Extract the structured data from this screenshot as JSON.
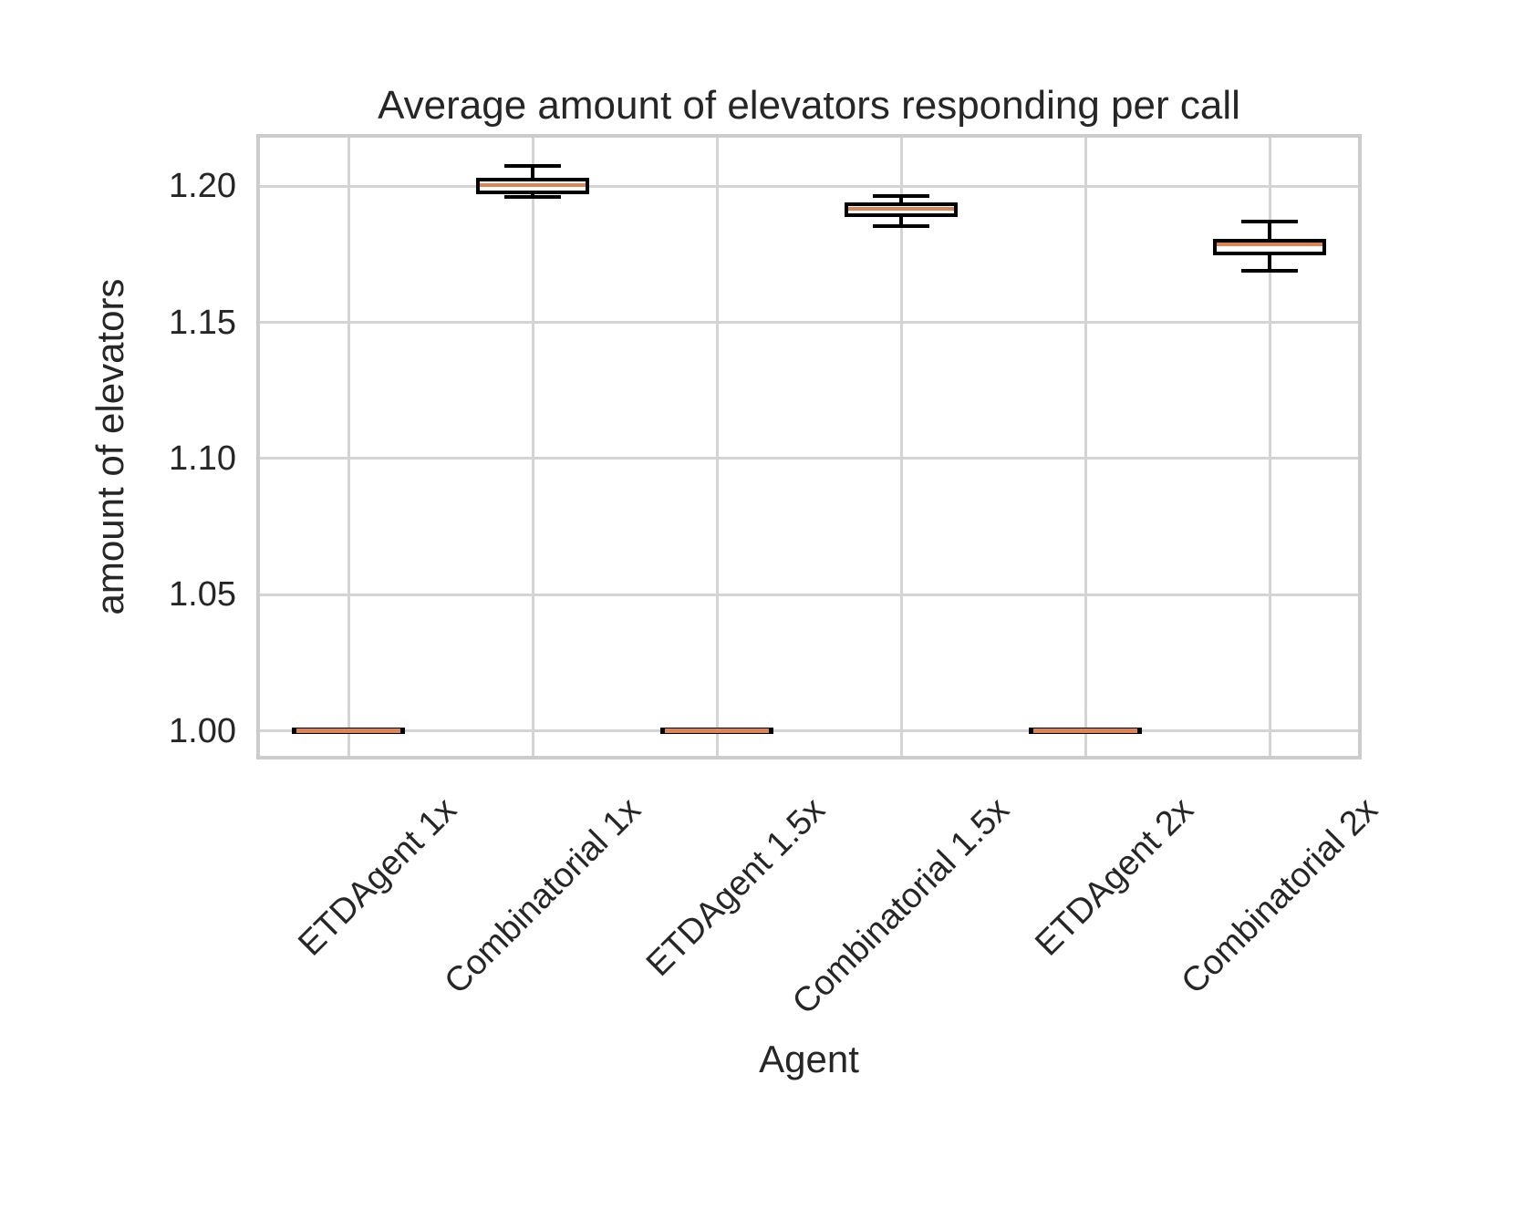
{
  "chart_data": {
    "type": "boxplot",
    "title": "Average amount of elevators responding per call",
    "xlabel": "Agent",
    "ylabel": "amount of elevators",
    "categories": [
      "ETDAgent 1x",
      "Combinatorial 1x",
      "ETDAgent 1.5x",
      "Combinatorial 1.5x",
      "ETDAgent 2x",
      "Combinatorial 2x"
    ],
    "boxes": [
      {
        "category": "ETDAgent 1x",
        "whislo": 1.0,
        "q1": 1.0,
        "med": 1.0,
        "q3": 1.0,
        "whishi": 1.0
      },
      {
        "category": "Combinatorial 1x",
        "whislo": 1.196,
        "q1": 1.1972,
        "med": 1.2005,
        "q3": 1.2031,
        "whishi": 1.2076
      },
      {
        "category": "ETDAgent 1.5x",
        "whislo": 1.0,
        "q1": 1.0,
        "med": 1.0,
        "q3": 1.0,
        "whishi": 1.0
      },
      {
        "category": "Combinatorial 1.5x",
        "whislo": 1.1855,
        "q1": 1.1888,
        "med": 1.1919,
        "q3": 1.194,
        "whishi": 1.1963
      },
      {
        "category": "ETDAgent 2x",
        "whislo": 1.0,
        "q1": 1.0,
        "med": 1.0,
        "q3": 1.0,
        "whishi": 1.0
      },
      {
        "category": "Combinatorial 2x",
        "whislo": 1.169,
        "q1": 1.1748,
        "med": 1.1788,
        "q3": 1.1807,
        "whishi": 1.1872
      }
    ],
    "ytick_labels": [
      "1.00",
      "1.05",
      "1.10",
      "1.15",
      "1.20"
    ],
    "ytick_values": [
      1.0,
      1.05,
      1.1,
      1.15,
      1.2
    ],
    "ylim": [
      0.9895,
      1.2192
    ],
    "grid": true,
    "legend": "none",
    "colors": {
      "median": "#dd8452",
      "box_edge": "#000000",
      "box_fill": "#ffffff",
      "grid": "#d4d4d4",
      "spine": "#cccccc",
      "text": "#262626",
      "background": "#ffffff"
    }
  }
}
